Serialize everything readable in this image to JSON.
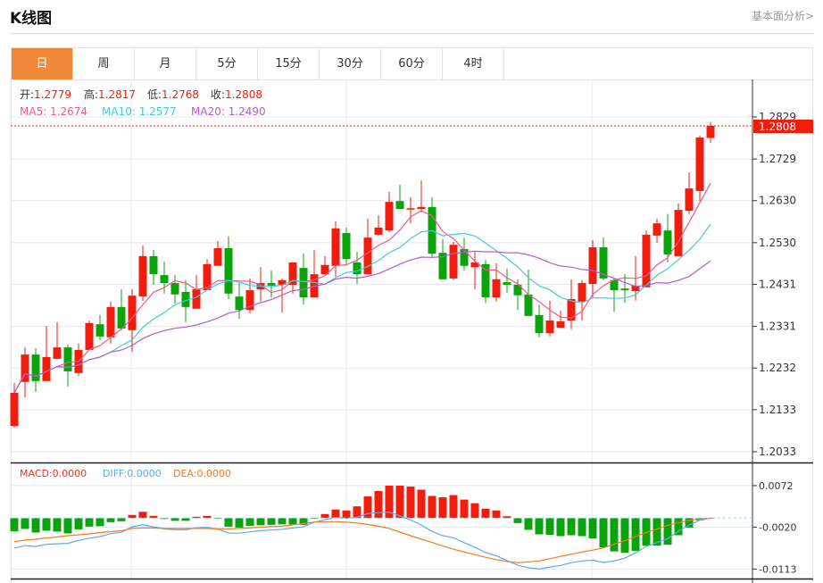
{
  "header": {
    "title": "K线图",
    "link": "基本面分析>"
  },
  "tabs": [
    "日",
    "周",
    "月",
    "5分",
    "15分",
    "30分",
    "60分",
    "4时"
  ],
  "active_tab": 0,
  "ohlc_legend": {
    "open_label": "开:",
    "open": "1.2779",
    "high_label": "高:",
    "high": "1.2817",
    "low_label": "低:",
    "low": "1.2768",
    "close_label": "收:",
    "close": "1.2808"
  },
  "ma_legend": {
    "ma5": "MA5: 1.2674",
    "ma10": "MA10: 1.2577",
    "ma20": "MA20: 1.2490"
  },
  "current_price": "1.2808",
  "macd_legend": {
    "macd": "MACD:0.0000",
    "diff": "DIFF:0.0000",
    "dea": "DEA:0.0000"
  },
  "colors": {
    "up": "#f21c0c",
    "down": "#0aa40a",
    "ma5": "#ef5a8e",
    "ma10": "#40cbe0",
    "ma20": "#b45ccc",
    "diff": "#5aabf0",
    "dea": "#f57a20",
    "accent": "#f0883a"
  },
  "chart_data": [
    {
      "type": "candlestick",
      "ylim": [
        1.2,
        1.285
      ],
      "ytick_labels": [
        "1.2829",
        "1.2729",
        "1.2630",
        "1.2530",
        "1.2431",
        "1.2331",
        "1.2232",
        "1.2133",
        "1.2033"
      ],
      "ytick_values": [
        1.2829,
        1.2729,
        1.263,
        1.253,
        1.2431,
        1.2331,
        1.2232,
        1.2133,
        1.2033
      ],
      "candles_ochl": [
        [
          1.2094,
          1.2173,
          1.2196,
          1.209
        ],
        [
          1.2199,
          1.2264,
          1.2281,
          1.2162
        ],
        [
          1.2264,
          1.2201,
          1.2279,
          1.2175
        ],
        [
          1.2201,
          1.2258,
          1.2332,
          1.2201
        ],
        [
          1.2254,
          1.2281,
          1.2341,
          1.2254
        ],
        [
          1.2281,
          1.2224,
          1.2288,
          1.2188
        ],
        [
          1.222,
          1.2275,
          1.229,
          1.2213
        ],
        [
          1.2275,
          1.2339,
          1.2345,
          1.2275
        ],
        [
          1.2336,
          1.2307,
          1.2358,
          1.2298
        ],
        [
          1.2305,
          1.2377,
          1.239,
          1.229
        ],
        [
          1.2377,
          1.2326,
          1.2419,
          1.2322
        ],
        [
          1.2322,
          1.2404,
          1.2419,
          1.2271
        ],
        [
          1.2402,
          1.2498,
          1.2523,
          1.2392
        ],
        [
          1.2498,
          1.2455,
          1.2513,
          1.243
        ],
        [
          1.2453,
          1.2434,
          1.2485,
          1.2409
        ],
        [
          1.2434,
          1.2407,
          1.2453,
          1.2385
        ],
        [
          1.2413,
          1.2377,
          1.2441,
          1.2341
        ],
        [
          1.2373,
          1.2419,
          1.2453,
          1.2373
        ],
        [
          1.2417,
          1.2479,
          1.2491,
          1.2417
        ],
        [
          1.2475,
          1.2517,
          1.2534,
          1.2475
        ],
        [
          1.2517,
          1.2409,
          1.2545,
          1.2396
        ],
        [
          1.2402,
          1.237,
          1.2434,
          1.2349
        ],
        [
          1.237,
          1.2417,
          1.2445,
          1.2362
        ],
        [
          1.2419,
          1.2434,
          1.2472,
          1.239
        ],
        [
          1.2434,
          1.2428,
          1.2464,
          1.24
        ],
        [
          1.243,
          1.2441,
          1.2445,
          1.2364
        ],
        [
          1.243,
          1.2483,
          1.2483,
          1.2409
        ],
        [
          1.247,
          1.24,
          1.2504,
          1.2383
        ],
        [
          1.24,
          1.2455,
          1.2513,
          1.24
        ],
        [
          1.2455,
          1.2477,
          1.2498,
          1.2455
        ],
        [
          1.2475,
          1.2564,
          1.2581,
          1.2449
        ],
        [
          1.2553,
          1.2491,
          1.2566,
          1.2479
        ],
        [
          1.2483,
          1.2455,
          1.2508,
          1.2432
        ],
        [
          1.2455,
          1.2542,
          1.2587,
          1.2455
        ],
        [
          1.2549,
          1.2566,
          1.2595,
          1.2547
        ],
        [
          1.2559,
          1.2627,
          1.2651,
          1.2555
        ],
        [
          1.2629,
          1.261,
          1.2668,
          1.261
        ],
        [
          1.261,
          1.2612,
          1.2638,
          1.2576
        ],
        [
          1.261,
          1.2615,
          1.2678,
          1.2602
        ],
        [
          1.2615,
          1.2504,
          1.2638,
          1.2494
        ],
        [
          1.2506,
          1.2443,
          1.2538,
          1.2443
        ],
        [
          1.2445,
          1.2525,
          1.2532,
          1.2441
        ],
        [
          1.2515,
          1.2475,
          1.2542,
          1.2464
        ],
        [
          1.2472,
          1.2483,
          1.2508,
          1.2419
        ],
        [
          1.2479,
          1.24,
          1.2489,
          1.2387
        ],
        [
          1.24,
          1.2443,
          1.2481,
          1.239
        ],
        [
          1.2436,
          1.243,
          1.2468,
          1.2411
        ],
        [
          1.243,
          1.2405,
          1.2443,
          1.237
        ],
        [
          1.2407,
          1.2356,
          1.2466,
          1.2356
        ],
        [
          1.2358,
          1.2315,
          1.2383,
          1.2305
        ],
        [
          1.2315,
          1.2345,
          1.2392,
          1.2307
        ],
        [
          1.2328,
          1.2343,
          1.2368,
          1.2328
        ],
        [
          1.2345,
          1.2396,
          1.2443,
          1.2324
        ],
        [
          1.239,
          1.2434,
          1.2441,
          1.2345
        ],
        [
          1.2432,
          1.2519,
          1.2536,
          1.24
        ],
        [
          1.2519,
          1.2445,
          1.2542,
          1.2441
        ],
        [
          1.2441,
          1.2417,
          1.2443,
          1.2366
        ],
        [
          1.2421,
          1.2417,
          1.2455,
          1.2387
        ],
        [
          1.2415,
          1.2428,
          1.2498,
          1.2392
        ],
        [
          1.2424,
          1.2549,
          1.2559,
          1.2424
        ],
        [
          1.2547,
          1.2576,
          1.2587,
          1.253
        ],
        [
          1.2559,
          1.2502,
          1.2598,
          1.2483
        ],
        [
          1.2498,
          1.2608,
          1.2623,
          1.2498
        ],
        [
          1.2606,
          1.2659,
          1.2697,
          1.2598
        ],
        [
          1.2653,
          1.278,
          1.2784,
          1.2629
        ],
        [
          1.2779,
          1.2808,
          1.2817,
          1.2768
        ]
      ],
      "ma_periods": [
        5,
        10,
        20
      ]
    },
    {
      "type": "macd",
      "ylim": [
        -0.0125,
        0.0085
      ],
      "ytick_labels": [
        "0.0072",
        "-0.0020",
        "-0.0113"
      ],
      "ytick_values": [
        0.0072,
        -0.002,
        -0.0113
      ],
      "histogram": [
        -0.0029,
        -0.0024,
        -0.0032,
        -0.0028,
        -0.003,
        -0.0034,
        -0.0025,
        -0.0019,
        -0.0018,
        -0.0009,
        -0.0007,
        0.0007,
        0.0014,
        0.0005,
        -0.0002,
        -0.0006,
        -0.0006,
        0.0003,
        0.0005,
        -0.0001,
        -0.0019,
        -0.0021,
        -0.0017,
        -0.0016,
        -0.0015,
        -0.0014,
        -0.0014,
        -0.0015,
        -0.0001,
        0.0009,
        0.0019,
        0.0017,
        0.0026,
        0.0048,
        0.006,
        0.0072,
        0.0072,
        0.007,
        0.0063,
        0.0049,
        0.0046,
        0.0051,
        0.0041,
        0.0033,
        0.0021,
        0.0017,
        0.0004,
        -0.0011,
        -0.0026,
        -0.0036,
        -0.0037,
        -0.004,
        -0.0038,
        -0.004,
        -0.0045,
        -0.0065,
        -0.0074,
        -0.0077,
        -0.0073,
        -0.0061,
        -0.0061,
        -0.0059,
        -0.0038,
        -0.0021,
        -0.0005,
        0.0
      ],
      "dea": [
        -0.0052,
        -0.0049,
        -0.0047,
        -0.0044,
        -0.0042,
        -0.0039,
        -0.0037,
        -0.0035,
        -0.0032,
        -0.003,
        -0.0028,
        -0.0023,
        -0.0022,
        -0.0022,
        -0.0023,
        -0.0023,
        -0.0023,
        -0.0023,
        -0.0023,
        -0.0024,
        -0.0024,
        -0.0023,
        -0.0022,
        -0.002,
        -0.0019,
        -0.0018,
        -0.0015,
        -0.0012,
        -0.0009,
        -0.0008,
        -0.0008,
        -0.0009,
        -0.0011,
        -0.0014,
        -0.0018,
        -0.0023,
        -0.0031,
        -0.0039,
        -0.0047,
        -0.0054,
        -0.0062,
        -0.0069,
        -0.0075,
        -0.0081,
        -0.0087,
        -0.0092,
        -0.0096,
        -0.0099,
        -0.0097,
        -0.0095,
        -0.009,
        -0.0085,
        -0.008,
        -0.0075,
        -0.0071,
        -0.0066,
        -0.0058,
        -0.005,
        -0.0041,
        -0.0032,
        -0.0024,
        -0.0016,
        -0.001,
        -0.0005,
        -0.0002,
        0.0
      ]
    }
  ]
}
